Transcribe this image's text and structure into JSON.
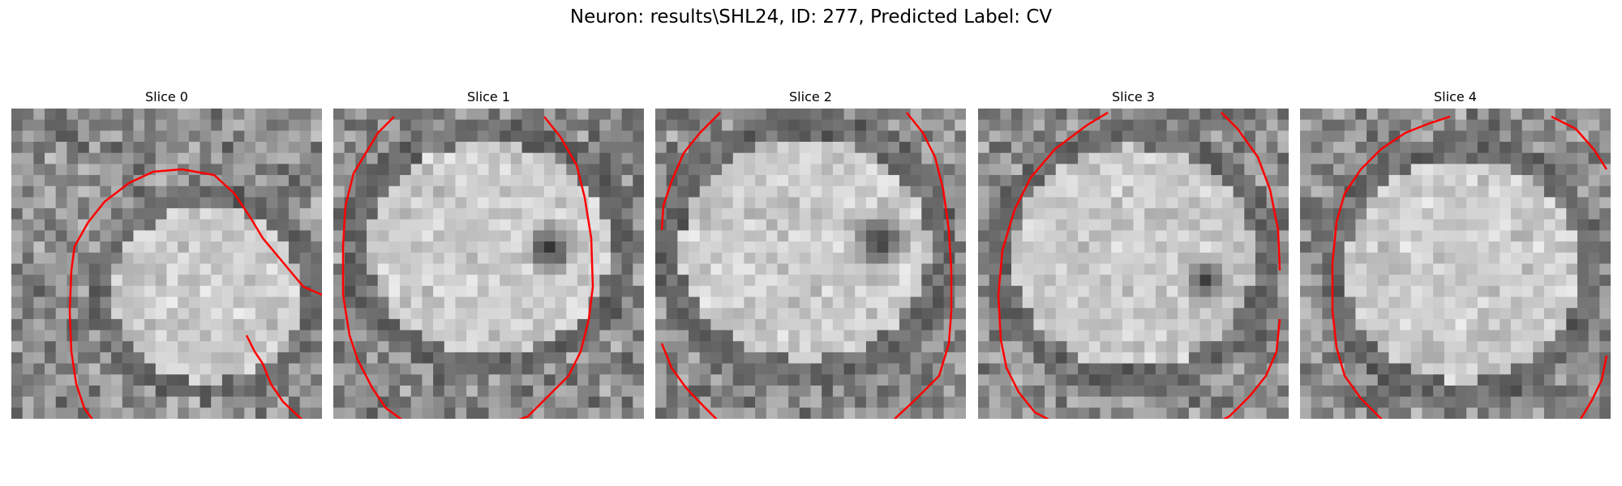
{
  "figure": {
    "title": "Neuron: results\\SHL24, ID: 277, Predicted Label: CV"
  },
  "panels": [
    {
      "title": "Slice 0"
    },
    {
      "title": "Slice 1"
    },
    {
      "title": "Slice 2"
    },
    {
      "title": "Slice 3"
    },
    {
      "title": "Slice 4"
    }
  ],
  "colors": {
    "contour": "#ff0000",
    "colormap": "gray"
  }
}
